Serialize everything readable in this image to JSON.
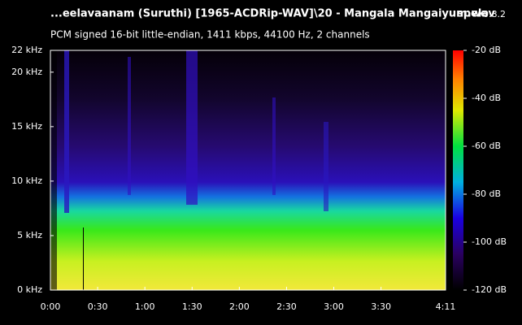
{
  "chart_data": {
    "type": "spectrogram",
    "title": "...eelavaanam (Suruthi) [1965-ACDRip-WAV]\\20 - Mangala Mangaiyum.wav",
    "subtitle": "PCM signed 16-bit little-endian, 1411 kbps, 44100 Hz, 2 channels",
    "app_name": "spek",
    "app_version": "0.8.2",
    "xlim": [
      0,
      251
    ],
    "xticks": [
      {
        "value": 0,
        "label": "0:00"
      },
      {
        "value": 30,
        "label": "0:30"
      },
      {
        "value": 60,
        "label": "1:00"
      },
      {
        "value": 90,
        "label": "1:30"
      },
      {
        "value": 120,
        "label": "2:00"
      },
      {
        "value": 150,
        "label": "2:30"
      },
      {
        "value": 180,
        "label": "3:00"
      },
      {
        "value": 210,
        "label": "3:30"
      },
      {
        "value": 251,
        "label": "4:11"
      }
    ],
    "ylim": [
      0,
      22
    ],
    "yticks": [
      {
        "value": 0,
        "label": "0 kHz"
      },
      {
        "value": 5,
        "label": "5 kHz"
      },
      {
        "value": 10,
        "label": "10 kHz"
      },
      {
        "value": 15,
        "label": "15 kHz"
      },
      {
        "value": 20,
        "label": "20 kHz"
      },
      {
        "value": 22,
        "label": "22 kHz"
      }
    ],
    "zlim": [
      -120,
      -20
    ],
    "zticks": [
      {
        "value": -20,
        "label": "-20 dB"
      },
      {
        "value": -40,
        "label": "-40 dB"
      },
      {
        "value": -60,
        "label": "-60 dB"
      },
      {
        "value": -80,
        "label": "-80 dB"
      },
      {
        "value": -100,
        "label": "-100 dB"
      },
      {
        "value": -120,
        "label": "-120 dB"
      }
    ]
  }
}
